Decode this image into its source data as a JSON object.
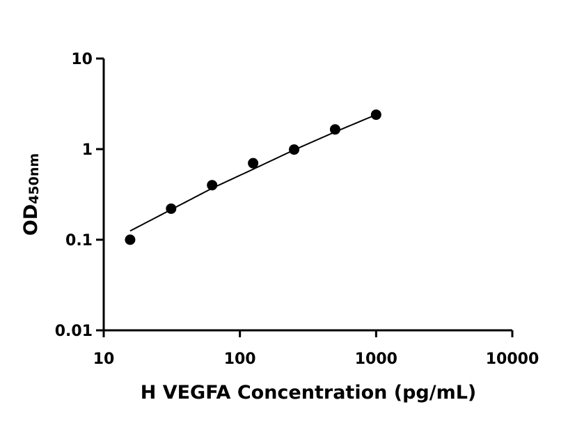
{
  "chart_data": {
    "type": "scatter",
    "title": "",
    "xlabel": "H VEGFA Concentration (pg/mL)",
    "ylabel_main": "OD",
    "ylabel_sub": "450nm",
    "x_scale": "log",
    "y_scale": "log",
    "xlim": [
      10,
      10000
    ],
    "ylim": [
      0.01,
      10
    ],
    "x_ticks": [
      10,
      100,
      1000,
      10000
    ],
    "x_tick_labels": [
      "10",
      "100",
      "1000",
      "10000"
    ],
    "y_ticks": [
      0.01,
      0.1,
      1,
      10
    ],
    "y_tick_labels": [
      "0.01",
      "0.1",
      "1",
      "10"
    ],
    "grid": false,
    "legend": "none",
    "series": [
      {
        "points": [
          {
            "x": 15.625,
            "y": 0.1
          },
          {
            "x": 31.25,
            "y": 0.22
          },
          {
            "x": 62.5,
            "y": 0.4
          },
          {
            "x": 125,
            "y": 0.7
          },
          {
            "x": 250,
            "y": 0.99
          },
          {
            "x": 500,
            "y": 1.65
          },
          {
            "x": 1000,
            "y": 2.4
          }
        ]
      }
    ],
    "fit_curve": {
      "x_range": [
        15.625,
        1000
      ],
      "points": [
        {
          "x": 15.625,
          "y": 0.125
        },
        {
          "x": 31.25,
          "y": 0.215
        },
        {
          "x": 62.5,
          "y": 0.37
        },
        {
          "x": 125,
          "y": 0.6
        },
        {
          "x": 250,
          "y": 0.98
        },
        {
          "x": 500,
          "y": 1.55
        },
        {
          "x": 1000,
          "y": 2.4
        }
      ]
    },
    "colors": {
      "marker": "#000000",
      "line": "#000000",
      "axis": "#000000"
    }
  }
}
